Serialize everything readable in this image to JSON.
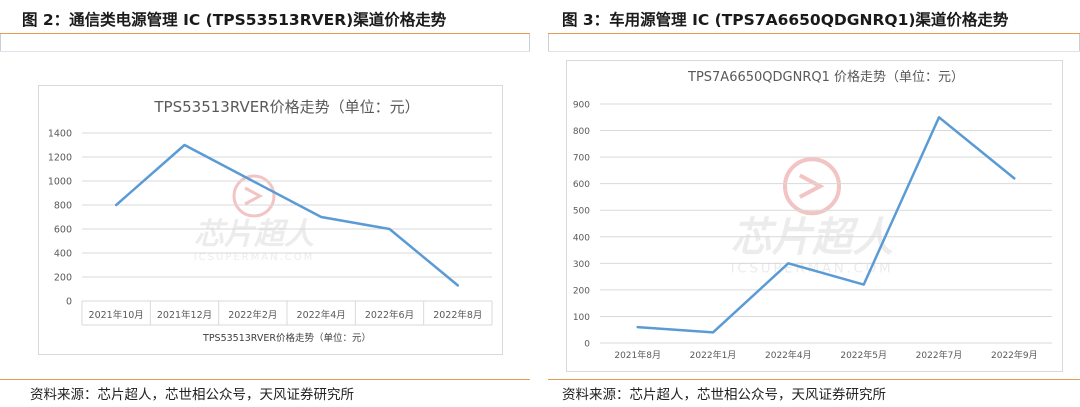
{
  "figures": [
    {
      "caption": "图 2：通信类电源管理 IC (TPS53513RVER)渠道价格走势",
      "source": "资料来源：芯片超人，芯世相公众号，天风证券研究所",
      "watermark_text": "芯片超人",
      "watermark_sub": "ICSUPERMAN.COM",
      "colors": {
        "line": "#5b9bd5",
        "grid": "#d9d9d9",
        "accent": "#e69b52"
      }
    },
    {
      "caption": "图 3：车用源管理 IC (TPS7A6650QDGNRQ1)渠道价格走势",
      "source": "资料来源：芯片超人，芯世相公众号，天风证券研究所",
      "watermark_text": "芯片超人",
      "watermark_sub": "ICSUPERMAN.COM",
      "colors": {
        "line": "#5b9bd5",
        "grid": "#d9d9d9",
        "accent": "#e69b52"
      }
    }
  ],
  "chart_data": [
    {
      "type": "line",
      "title": "TPS53513RVER价格走势（单位：元）",
      "legend": "TPS53513RVER价格走势（单位：元）",
      "categories": [
        "2021年10月",
        "2021年12月",
        "2022年2月",
        "2022年4月",
        "2022年6月",
        "2022年8月"
      ],
      "series": [
        {
          "name": "TPS53513RVER价格走势（单位：元）",
          "values": [
            800,
            1300,
            1000,
            700,
            600,
            130
          ]
        }
      ],
      "yticks": [
        "0",
        "200",
        "400",
        "600",
        "800",
        "1000",
        "1200",
        "1400"
      ],
      "ylim": [
        0,
        1400
      ],
      "grid": true
    },
    {
      "type": "line",
      "title": "TPS7A6650QDGNRQ1 价格走势（单位：元）",
      "categories": [
        "2021年8月",
        "2022年1月",
        "2022年4月",
        "2022年5月",
        "2022年7月",
        "2022年9月"
      ],
      "series": [
        {
          "values": [
            60,
            40,
            300,
            220,
            850,
            620
          ]
        }
      ],
      "yticks": [
        "0",
        "100",
        "200",
        "300",
        "400",
        "500",
        "600",
        "700",
        "800",
        "900"
      ],
      "ylim": [
        0,
        900
      ],
      "grid": true
    }
  ]
}
